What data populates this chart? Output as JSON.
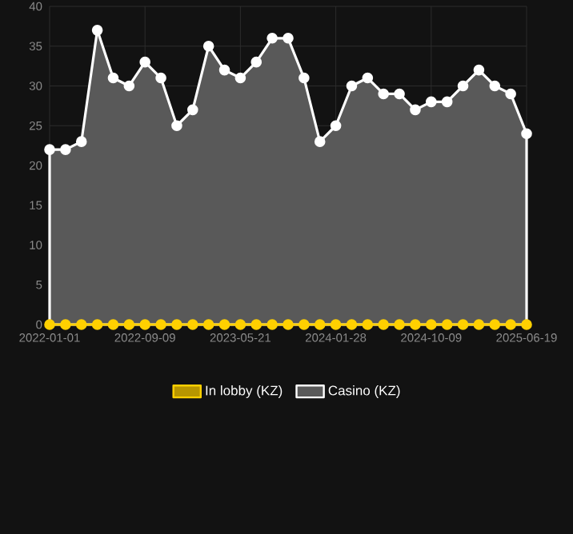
{
  "chart_data": {
    "type": "area",
    "categories": [
      "2022-01-01",
      null,
      null,
      null,
      null,
      null,
      "2022-09-09",
      null,
      null,
      null,
      null,
      null,
      "2023-05-21",
      null,
      null,
      null,
      null,
      null,
      "2024-01-28",
      null,
      null,
      null,
      null,
      null,
      "2024-10-09",
      null,
      null,
      null,
      null,
      null,
      "2025-06-19"
    ],
    "series": [
      {
        "name": "In lobby (KZ)",
        "type": "line",
        "color": "#ffd000",
        "values": [
          0,
          0,
          0,
          0,
          0,
          0,
          0,
          0,
          0,
          0,
          0,
          0,
          0,
          0,
          0,
          0,
          0,
          0,
          0,
          0,
          0,
          0,
          0,
          0,
          0,
          0,
          0,
          0,
          0,
          0,
          0
        ]
      },
      {
        "name": "Casino (KZ)",
        "color": "#ffffff",
        "values": [
          22,
          22,
          23,
          37,
          31,
          30,
          33,
          31,
          25,
          27,
          35,
          32,
          31,
          33,
          36,
          36,
          31,
          23,
          25,
          30,
          31,
          29,
          29,
          27,
          28,
          28,
          30,
          32,
          30,
          29,
          24
        ]
      }
    ],
    "ylim": [
      0,
      40
    ],
    "yticks": [
      0,
      5,
      10,
      15,
      20,
      25,
      30,
      35,
      40
    ],
    "grid": true,
    "legend": "bottom",
    "marker": "circle"
  }
}
